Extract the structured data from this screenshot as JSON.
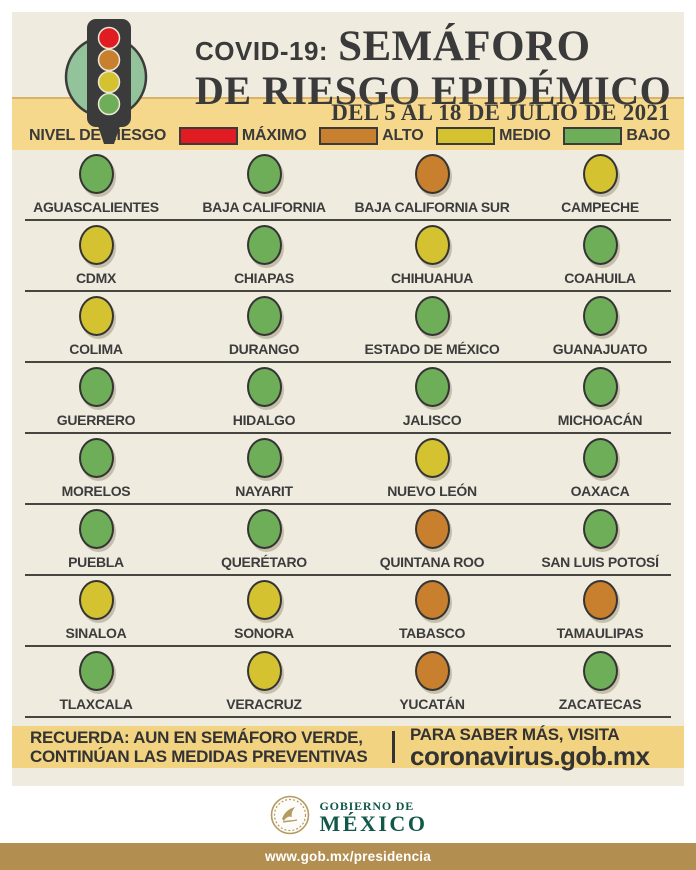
{
  "header": {
    "kicker": "COVID-19:",
    "title_line1": "SEMÁFORO",
    "title_line2": "DE RIESGO EPIDÉMICO",
    "date_range": "DEL 5 AL 18 DE JULIO DE 2021"
  },
  "legend": {
    "title": "NIVEL DE RIESGO",
    "levels": [
      {
        "id": "maximo",
        "label": "MÁXIMO",
        "color": "#e11b22"
      },
      {
        "id": "alto",
        "label": "ALTO",
        "color": "#c8802f"
      },
      {
        "id": "medio",
        "label": "MEDIO",
        "color": "#d5c231"
      },
      {
        "id": "bajo",
        "label": "BAJO",
        "color": "#6fae58"
      }
    ]
  },
  "states": [
    {
      "name": "AGUASCALIENTES",
      "level": "bajo"
    },
    {
      "name": "BAJA CALIFORNIA",
      "level": "bajo"
    },
    {
      "name": "BAJA CALIFORNIA SUR",
      "level": "alto"
    },
    {
      "name": "CAMPECHE",
      "level": "medio"
    },
    {
      "name": "CDMX",
      "level": "medio"
    },
    {
      "name": "CHIAPAS",
      "level": "bajo"
    },
    {
      "name": "CHIHUAHUA",
      "level": "medio"
    },
    {
      "name": "COAHUILA",
      "level": "bajo"
    },
    {
      "name": "COLIMA",
      "level": "medio"
    },
    {
      "name": "DURANGO",
      "level": "bajo"
    },
    {
      "name": "ESTADO DE MÉXICO",
      "level": "bajo"
    },
    {
      "name": "GUANAJUATO",
      "level": "bajo"
    },
    {
      "name": "GUERRERO",
      "level": "bajo"
    },
    {
      "name": "HIDALGO",
      "level": "bajo"
    },
    {
      "name": "JALISCO",
      "level": "bajo"
    },
    {
      "name": "MICHOACÁN",
      "level": "bajo"
    },
    {
      "name": "MORELOS",
      "level": "bajo"
    },
    {
      "name": "NAYARIT",
      "level": "bajo"
    },
    {
      "name": "NUEVO LEÓN",
      "level": "medio"
    },
    {
      "name": "OAXACA",
      "level": "bajo"
    },
    {
      "name": "PUEBLA",
      "level": "bajo"
    },
    {
      "name": "QUERÉTARO",
      "level": "bajo"
    },
    {
      "name": "QUINTANA ROO",
      "level": "alto"
    },
    {
      "name": "SAN LUIS POTOSÍ",
      "level": "bajo"
    },
    {
      "name": "SINALOA",
      "level": "medio"
    },
    {
      "name": "SONORA",
      "level": "medio"
    },
    {
      "name": "TABASCO",
      "level": "alto"
    },
    {
      "name": "TAMAULIPAS",
      "level": "alto"
    },
    {
      "name": "TLAXCALA",
      "level": "bajo"
    },
    {
      "name": "VERACRUZ",
      "level": "medio"
    },
    {
      "name": "YUCATÁN",
      "level": "alto"
    },
    {
      "name": "ZACATECAS",
      "level": "bajo"
    }
  ],
  "footer": {
    "reminder_bold": "RECUERDA:",
    "reminder_rest_line1": "AUN EN SEMÁFORO VERDE,",
    "reminder_line2": "CONTINÚAN LAS MEDIDAS PREVENTIVAS",
    "visit_line": "PARA SABER MÁS, VISITA",
    "url": "coronavirus.gob.mx"
  },
  "branding": {
    "gov_line1": "GOBIERNO DE",
    "gov_line2": "MÉXICO",
    "bottom_bar": "www.gob.mx/presidencia"
  },
  "colors": {
    "panel_bg": "#f0ebdf",
    "band_bg": "#f5d88c",
    "footer_band_bg": "#f2d382",
    "text_dark": "#3a3a3a",
    "bottom_bar_bg": "#b28e50",
    "gov_green": "#11584b",
    "gov_gold": "#b49b63",
    "traffic_circle_green": "#93c39b"
  }
}
